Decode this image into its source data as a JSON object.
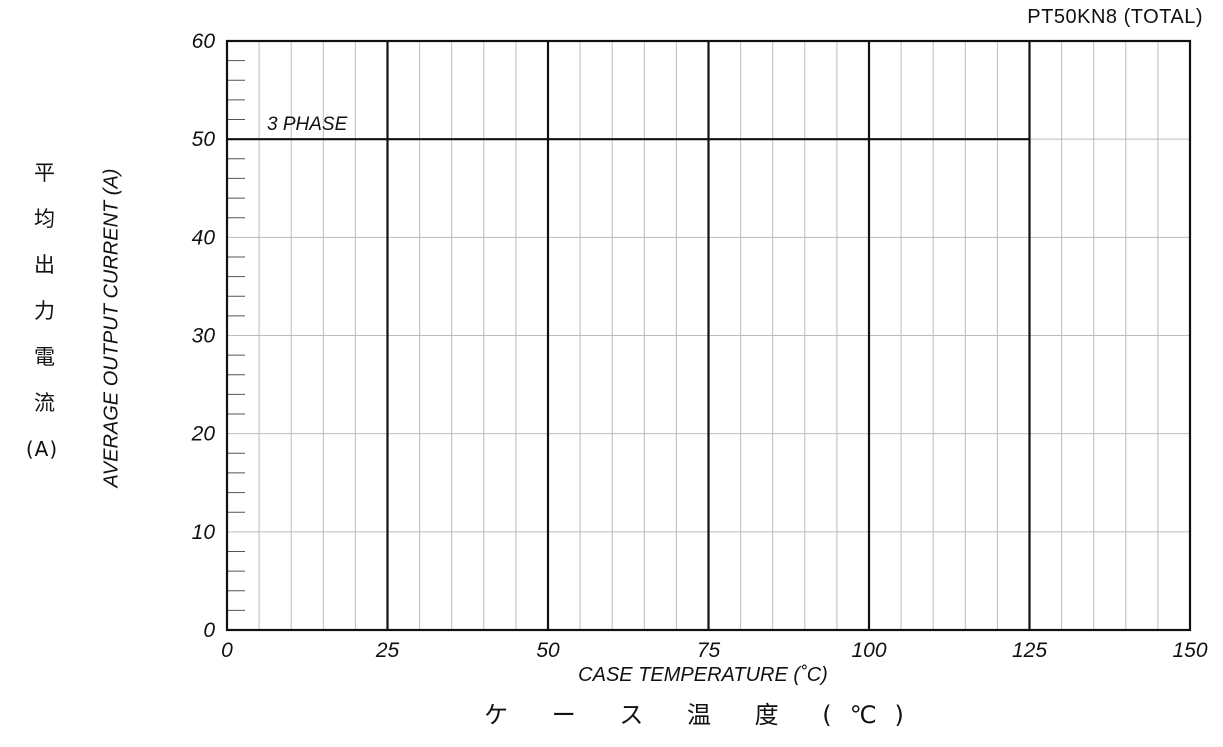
{
  "model_label": "PT50KN8  (TOTAL)",
  "chart_data": {
    "type": "line",
    "xlabel": "CASE TEMPERATURE (˚C)",
    "xlabel_jp": "ケ ー ス 温 度  (℃)",
    "ylabel": "AVERAGE OUTPUT CURRENT (A)",
    "ylabel_jp": [
      "平",
      "均",
      "出",
      "力",
      "電",
      "流",
      "(A)"
    ],
    "xlim": [
      0,
      150
    ],
    "ylim": [
      0,
      60
    ],
    "x_ticks": [
      0,
      25,
      50,
      75,
      100,
      125,
      150
    ],
    "y_ticks": [
      0,
      10,
      20,
      30,
      40,
      50,
      60
    ],
    "x_tick_labels": [
      "0",
      "25",
      "50",
      "75",
      "100",
      "125",
      "150"
    ],
    "y_tick_labels": [
      "0",
      "10",
      "20",
      "30",
      "40",
      "50",
      "60"
    ],
    "grid": true,
    "series": [
      {
        "name": "3 PHASE",
        "x": [
          0,
          125
        ],
        "y": [
          50,
          50
        ]
      }
    ]
  }
}
